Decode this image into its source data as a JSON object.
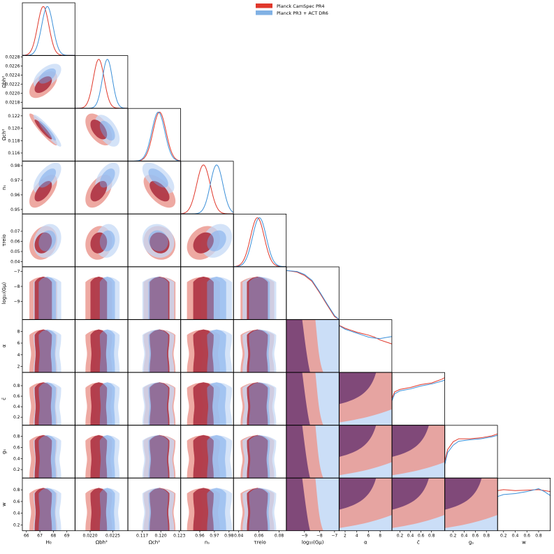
{
  "chart_data": {
    "type": "triangle-corner",
    "legend": {
      "placement": "top-right",
      "entries": [
        {
          "label": "Planck CamSpec PR4",
          "color": "#e0372a"
        },
        {
          "label": "Planck PR3 + ACT DR6",
          "color": "#4a90d9"
        }
      ]
    },
    "colors": {
      "red_line": "#e0372a",
      "blue_line": "#3b8fd8",
      "red_inner": "#e23423",
      "red_outer": "#eb9a92",
      "blue_inner": "#8fb6ee",
      "blue_outer": "#c5daf6",
      "overlap": "#7a4477"
    },
    "parameters": [
      {
        "key": "H0",
        "label": "H₀",
        "range": [
          65.7,
          69.6
        ],
        "ticks": [
          66,
          67,
          68,
          69
        ],
        "ticklabels": [
          "66",
          "67",
          "68",
          "69"
        ]
      },
      {
        "key": "ombh2",
        "label": "Ωbh²",
        "range": [
          0.02167,
          0.02283
        ],
        "ticks": [
          0.0218,
          0.022,
          0.0222,
          0.0224,
          0.0226,
          0.0228
        ],
        "ticklabels": [
          "0.0218",
          "0.0220",
          "0.0222",
          "0.0224",
          "0.0226",
          "0.0228"
        ],
        "xticks": [
          0.022,
          0.0225
        ],
        "xticklabels": [
          "0.0220",
          "0.0225"
        ]
      },
      {
        "key": "omch2",
        "label": "Ωch²",
        "range": [
          0.1147,
          0.1232
        ],
        "ticks": [
          0.116,
          0.118,
          0.12,
          0.122
        ],
        "ticklabels": [
          "0.116",
          "0.118",
          "0.120",
          "0.122"
        ],
        "xticks": [
          0.117,
          0.12,
          0.123
        ],
        "xticklabels": [
          "0.117",
          "0.120",
          "0.123"
        ]
      },
      {
        "key": "ns",
        "label": "nₛ",
        "range": [
          0.947,
          0.983
        ],
        "ticks": [
          0.95,
          0.96,
          0.97,
          0.98
        ],
        "ticklabels": [
          "0.95",
          "0.96",
          "0.97",
          "0.98"
        ],
        "xticks": [
          0.96,
          0.97,
          0.98
        ],
        "xticklabels": [
          "0.96",
          "0.97",
          "0.98"
        ]
      },
      {
        "key": "tau",
        "label": "τreio",
        "range": [
          0.035,
          0.087
        ],
        "ticks": [
          0.04,
          0.05,
          0.06,
          0.07
        ],
        "ticklabels": [
          "0.04",
          "0.05",
          "0.06",
          "0.07"
        ],
        "xticks": [
          0.04,
          0.06,
          0.08
        ],
        "xticklabels": [
          "0.04",
          "0.06",
          "0.08"
        ]
      },
      {
        "key": "logGmu",
        "label": "log₁₀(Gμ)",
        "range": [
          -10.2,
          -6.7
        ],
        "ticks": [
          -9,
          -8,
          -7
        ],
        "ticklabels": [
          "−9",
          "−8",
          "−7"
        ]
      },
      {
        "key": "alpha",
        "label": "α",
        "range": [
          1,
          10
        ],
        "ticks": [
          2,
          4,
          6,
          8
        ],
        "ticklabels": [
          "2",
          "4",
          "6",
          "8"
        ]
      },
      {
        "key": "cbar",
        "label": "c̄",
        "range": [
          0.05,
          1.05
        ],
        "ticks": [
          0.2,
          0.4,
          0.6,
          0.8
        ],
        "ticklabels": [
          "0.2",
          "0.4",
          "0.6",
          "0.8"
        ],
        "xticks": [
          0.2,
          0.4,
          0.6,
          0.8
        ],
        "xticklabels": [
          "0.2",
          "0.4",
          "0.6",
          "0.8"
        ]
      },
      {
        "key": "gs",
        "label": "gₛ",
        "range": [
          0.05,
          1.0
        ],
        "ticks": [
          0.2,
          0.4,
          0.6,
          0.8
        ],
        "ticklabels": [
          "0.2",
          "0.4",
          "0.6",
          "0.8"
        ]
      },
      {
        "key": "w",
        "label": "w",
        "range": [
          0.1,
          1.0
        ],
        "ticks": [
          0.2,
          0.4,
          0.6,
          0.8
        ],
        "ticklabels": [
          "0.2",
          "0.4",
          "0.6",
          "0.8"
        ]
      }
    ],
    "gaussian_params": [
      "H0",
      "ombh2",
      "omch2",
      "ns",
      "tau"
    ],
    "series": [
      {
        "name": "Planck CamSpec PR4",
        "means": {
          "H0": 67.25,
          "ombh2": 0.02219,
          "omch2": 0.1198,
          "ns": 0.9625,
          "tau": 0.0585
        },
        "sigmas": {
          "H0": 0.42,
          "ombh2": 0.00012,
          "omch2": 0.00105,
          "ns": 0.0046,
          "tau": 0.0068
        },
        "correlations": {
          "H0|ombh2": 0.55,
          "H0|omch2": -0.93,
          "H0|ns": 0.62,
          "H0|tau": 0.2,
          "ombh2|omch2": -0.52,
          "ombh2|ns": 0.5,
          "ombh2|tau": 0.1,
          "omch2|ns": -0.6,
          "omch2|tau": -0.1,
          "ns|tau": 0.25
        },
        "marginals_1d": {
          "logGmu": {
            "x": [
              -10.2,
              -9.5,
              -9.0,
              -8.5,
              -8.0,
              -7.5,
              -7.0,
              -6.7
            ],
            "y": [
              1.0,
              0.97,
              0.9,
              0.78,
              0.55,
              0.3,
              0.06,
              0.0
            ]
          },
          "alpha": {
            "x": [
              1,
              2,
              3,
              4,
              5,
              6,
              7,
              8,
              9,
              10
            ],
            "y": [
              0.96,
              0.9,
              0.86,
              0.82,
              0.79,
              0.76,
              0.72,
              0.66,
              0.62,
              0.58
            ]
          },
          "cbar": {
            "x": [
              0.05,
              0.1,
              0.2,
              0.4,
              0.6,
              0.8,
              1.0,
              1.05
            ],
            "y": [
              0.55,
              0.68,
              0.73,
              0.77,
              0.83,
              0.86,
              0.94,
              0.97
            ]
          },
          "gs": {
            "x": [
              0.05,
              0.1,
              0.2,
              0.3,
              0.5,
              0.7,
              0.9,
              1.0
            ],
            "y": [
              0.35,
              0.58,
              0.74,
              0.8,
              0.8,
              0.82,
              0.86,
              0.9
            ]
          },
          "w": {
            "x": [
              0.1,
              0.2,
              0.4,
              0.6,
              0.8,
              0.9,
              1.0
            ],
            "y": [
              0.82,
              0.84,
              0.82,
              0.83,
              0.84,
              0.82,
              0.8
            ]
          }
        }
      },
      {
        "name": "Planck PR3 + ACT DR6",
        "means": {
          "H0": 67.55,
          "ombh2": 0.02238,
          "omch2": 0.1196,
          "ns": 0.9715,
          "tau": 0.0605
        },
        "sigmas": {
          "H0": 0.42,
          "ombh2": 0.00011,
          "omch2": 0.00105,
          "ns": 0.0043,
          "tau": 0.0068
        },
        "correlations": {
          "H0|ombh2": 0.55,
          "H0|omch2": -0.93,
          "H0|ns": 0.62,
          "H0|tau": 0.2,
          "ombh2|omch2": -0.52,
          "ombh2|ns": 0.5,
          "ombh2|tau": 0.1,
          "omch2|ns": -0.6,
          "omch2|tau": -0.1,
          "ns|tau": 0.25
        },
        "marginals_1d": {
          "logGmu": {
            "x": [
              -10.2,
              -9.5,
              -9.0,
              -8.5,
              -8.0,
              -7.5,
              -7.0,
              -6.7
            ],
            "y": [
              1.0,
              0.98,
              0.92,
              0.8,
              0.57,
              0.32,
              0.08,
              0.0
            ]
          },
          "alpha": {
            "x": [
              1,
              2,
              3,
              4,
              5,
              6,
              7,
              8,
              9,
              10
            ],
            "y": [
              0.95,
              0.88,
              0.84,
              0.8,
              0.76,
              0.72,
              0.7,
              0.69,
              0.71,
              0.73
            ]
          },
          "cbar": {
            "x": [
              0.05,
              0.1,
              0.2,
              0.4,
              0.6,
              0.8,
              1.0,
              1.05
            ],
            "y": [
              0.5,
              0.64,
              0.7,
              0.74,
              0.8,
              0.84,
              0.9,
              0.92
            ]
          },
          "gs": {
            "x": [
              0.05,
              0.1,
              0.2,
              0.3,
              0.5,
              0.7,
              0.9,
              1.0
            ],
            "y": [
              0.28,
              0.52,
              0.67,
              0.75,
              0.78,
              0.8,
              0.84,
              0.87
            ]
          },
          "w": {
            "x": [
              0.1,
              0.2,
              0.4,
              0.6,
              0.8,
              0.9,
              1.0
            ],
            "y": [
              0.7,
              0.74,
              0.76,
              0.8,
              0.86,
              0.8,
              0.72
            ]
          }
        }
      }
    ],
    "grid": false
  }
}
